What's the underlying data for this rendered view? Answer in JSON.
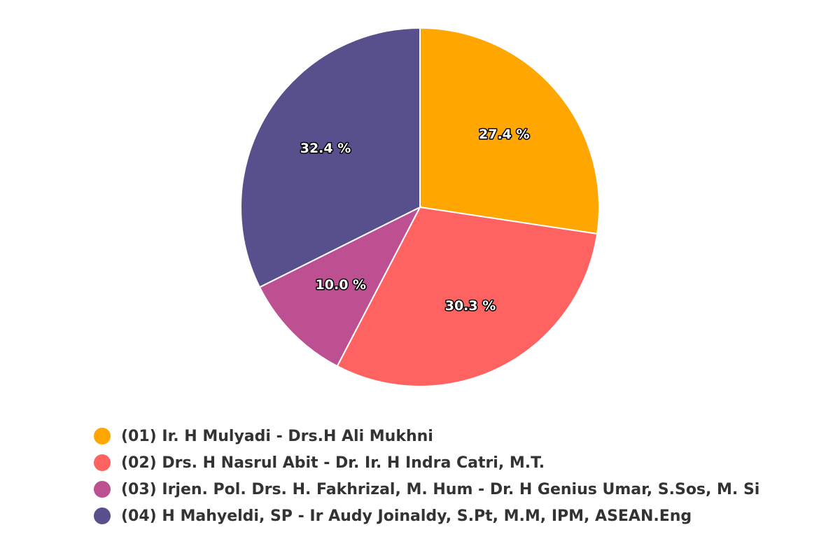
{
  "chart_data": {
    "type": "pie",
    "title": "",
    "categories": [
      "(01) Ir. H Mulyadi - Drs.H Ali Mukhni",
      "(02) Drs. H Nasrul Abit - Dr. Ir. H Indra Catri, M.T.",
      "(03) Irjen. Pol. Drs. H. Fakhrizal, M. Hum - Dr. H Genius Umar, S.Sos, M. Si",
      "(04) H Mahyeldi, SP - Ir Audy Joinaldy, S.Pt, M.M, IPM, ASEAN.Eng"
    ],
    "values": [
      27.4,
      30.3,
      10.0,
      32.4
    ],
    "data_labels": [
      "27.4 %",
      "30.3 %",
      "10.0 %",
      "32.4 %"
    ],
    "colors": [
      "#ffa600",
      "#ff6361",
      "#bc5090",
      "#58508d"
    ],
    "legend": "bottom-left",
    "start_direction": "12 o'clock, clockwise"
  }
}
